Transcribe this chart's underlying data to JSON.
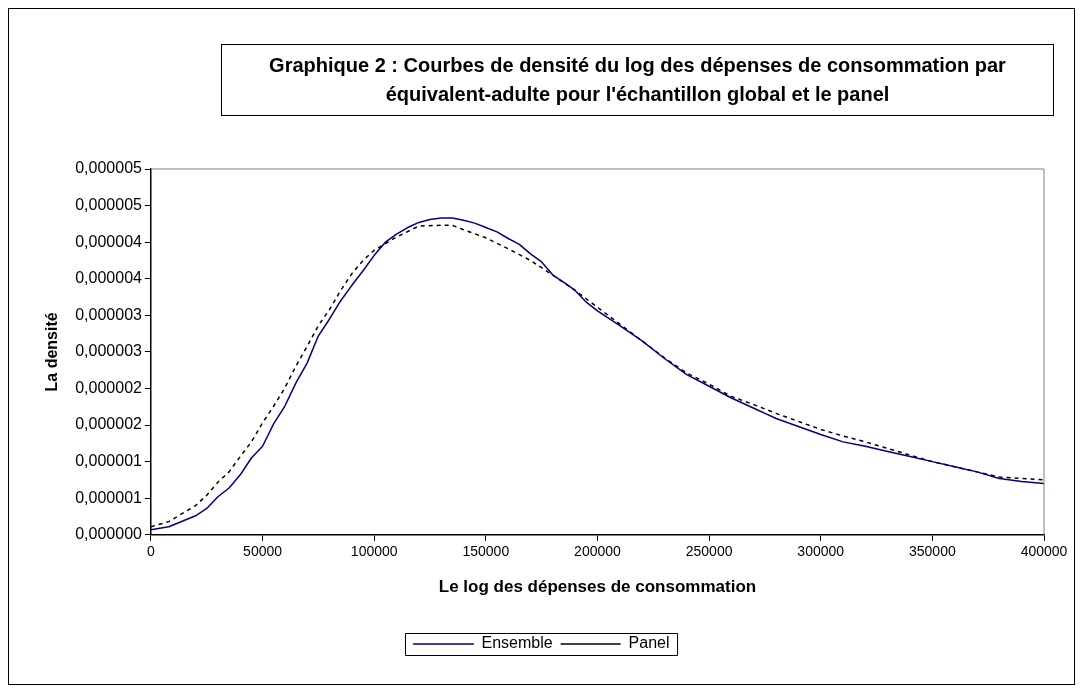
{
  "chart_data": {
    "type": "line",
    "title": "Graphique 2 : Courbes de densité du log des dépenses de consommation par équivalent-adulte pour l'échantillon global et le panel",
    "xlabel": "Le log des dépenses de consommation",
    "ylabel": "La densité",
    "xlim": [
      0,
      400000
    ],
    "xticks": [
      0,
      50000,
      100000,
      150000,
      200000,
      250000,
      300000,
      350000,
      400000
    ],
    "ylim": [
      0,
      5e-06
    ],
    "yticks": [
      {
        "value": 0,
        "label": "0,000000"
      },
      {
        "value": 5e-07,
        "label": "0,000001"
      },
      {
        "value": 1e-06,
        "label": "0,000001"
      },
      {
        "value": 1.5e-06,
        "label": "0,000002"
      },
      {
        "value": 2e-06,
        "label": "0,000002"
      },
      {
        "value": 2.5e-06,
        "label": "0,000003"
      },
      {
        "value": 3e-06,
        "label": "0,000003"
      },
      {
        "value": 3.5e-06,
        "label": "0,000004"
      },
      {
        "value": 4e-06,
        "label": "0,000004"
      },
      {
        "value": 4.5e-06,
        "label": "0,000005"
      },
      {
        "value": 5e-06,
        "label": "0,000005"
      }
    ],
    "grid": false,
    "legend": "bottom",
    "marker": "none",
    "series": [
      {
        "name": "Ensemble",
        "color": "#000080",
        "line_style": "solid",
        "x": [
          0,
          8000,
          20000,
          25000,
          30000,
          35000,
          40000,
          45000,
          50000,
          55000,
          60000,
          65000,
          70000,
          75000,
          80000,
          85000,
          90000,
          95000,
          100000,
          105000,
          110000,
          115000,
          120000,
          125000,
          130000,
          135000,
          140000,
          145000,
          150000,
          155000,
          160000,
          165000,
          170000,
          175000,
          180000,
          185000,
          190000,
          195000,
          200000,
          210000,
          220000,
          230000,
          240000,
          250000,
          260000,
          270000,
          280000,
          290000,
          300000,
          310000,
          320000,
          330000,
          340000,
          350000,
          360000,
          370000,
          380000,
          390000,
          400000
        ],
        "values": [
          7e-08,
          1.1e-07,
          2.6e-07,
          3.6e-07,
          5.2e-07,
          6.4e-07,
          8.2e-07,
          1.05e-06,
          1.21e-06,
          1.52e-06,
          1.76e-06,
          2.08e-06,
          2.35e-06,
          2.72e-06,
          2.95e-06,
          3.2e-06,
          3.41e-06,
          3.61e-06,
          3.82e-06,
          4e-06,
          4.11e-06,
          4.2e-06,
          4.27e-06,
          4.31e-06,
          4.33e-06,
          4.33e-06,
          4.3e-06,
          4.26e-06,
          4.2e-06,
          4.14e-06,
          4.05e-06,
          3.97e-06,
          3.84e-06,
          3.73e-06,
          3.55e-06,
          3.45e-06,
          3.34e-06,
          3.18e-06,
          3.06e-06,
          2.86e-06,
          2.65e-06,
          2.41e-06,
          2.19e-06,
          2.03e-06,
          1.87e-06,
          1.73e-06,
          1.59e-06,
          1.48e-06,
          1.37e-06,
          1.27e-06,
          1.21e-06,
          1.14e-06,
          1.07e-06,
          1e-06,
          9.3e-07,
          8.6e-07,
          7.7e-07,
          7.3e-07,
          7e-07
        ]
      },
      {
        "name": "Panel",
        "color": "#000000",
        "line_style": "dashed",
        "x": [
          0,
          8000,
          20000,
          25000,
          30000,
          35000,
          40000,
          45000,
          50000,
          55000,
          60000,
          65000,
          70000,
          75000,
          80000,
          85000,
          90000,
          95000,
          100000,
          110000,
          120000,
          130000,
          135000,
          140000,
          150000,
          160000,
          170000,
          180000,
          190000,
          200000,
          210000,
          220000,
          230000,
          240000,
          250000,
          260000,
          270000,
          280000,
          290000,
          300000,
          310000,
          320000,
          330000,
          340000,
          350000,
          360000,
          370000,
          380000,
          390000,
          400000
        ],
        "values": [
          1.1e-07,
          1.8e-07,
          4e-07,
          5.4e-07,
          7.2e-07,
          8.6e-07,
          1.07e-06,
          1.27e-06,
          1.53e-06,
          1.76e-06,
          2.01e-06,
          2.31e-06,
          2.58e-06,
          2.86e-06,
          3.08e-06,
          3.34e-06,
          3.57e-06,
          3.75e-06,
          3.89e-06,
          4.07e-06,
          4.22e-06,
          4.23e-06,
          4.23e-06,
          4.17e-06,
          4.06e-06,
          3.91e-06,
          3.75e-06,
          3.55e-06,
          3.34e-06,
          3.11e-06,
          2.88e-06,
          2.65e-06,
          2.42e-06,
          2.21e-06,
          2.06e-06,
          1.89e-06,
          1.78e-06,
          1.66e-06,
          1.55e-06,
          1.44e-06,
          1.35e-06,
          1.27e-06,
          1.18e-06,
          1.09e-06,
          1e-06,
          9.3e-07,
          8.6e-07,
          7.9e-07,
          7.7e-07,
          7.5e-07
        ]
      }
    ]
  }
}
